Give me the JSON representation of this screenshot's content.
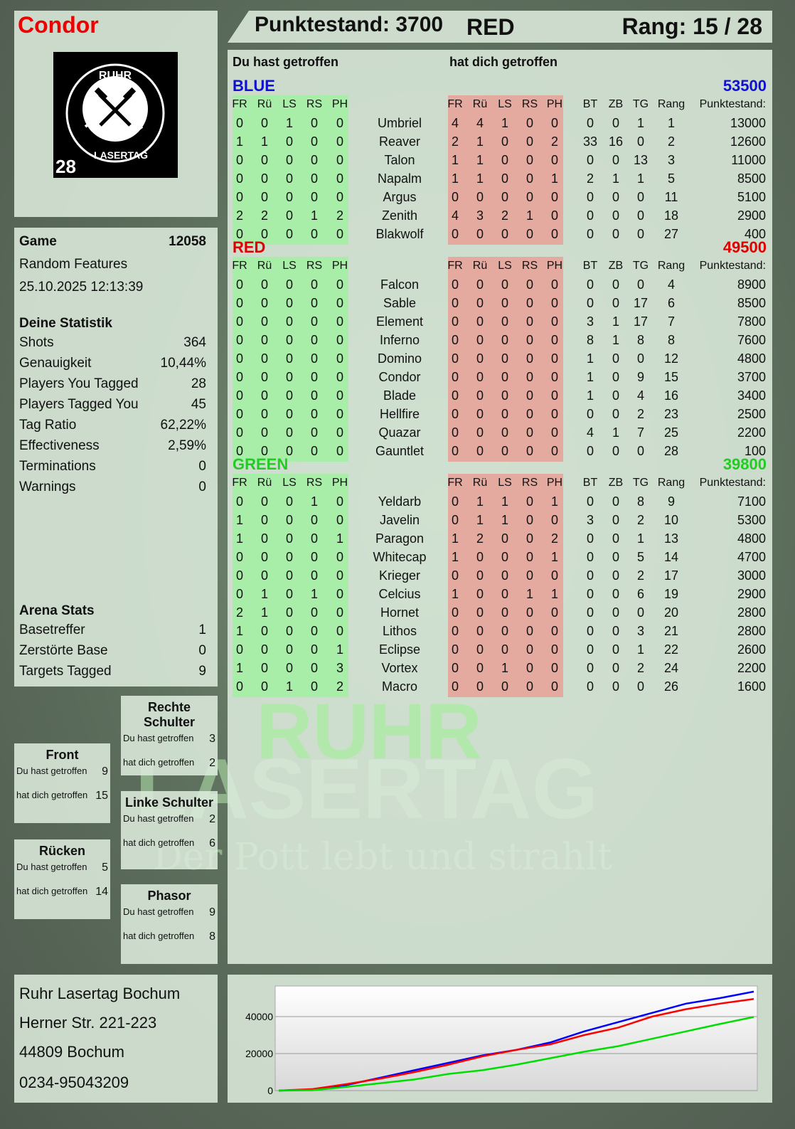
{
  "player": {
    "name": "Condor",
    "logo_text_top": "RUHR",
    "logo_text_bottom": "LASERTAG",
    "logo_number": "28"
  },
  "header": {
    "score": "Punktestand: 3700",
    "team": "RED",
    "rank": "Rang: 15 / 28"
  },
  "main": {
    "you_hit": "Du hast getroffen",
    "hit_you": "hat dich getroffen"
  },
  "columns": {
    "zones": [
      "FR",
      "Rü",
      "LS",
      "RS",
      "PH"
    ],
    "extra": [
      "BT",
      "ZB",
      "TG",
      "Rang"
    ],
    "score": "Punktestand:"
  },
  "colors": {
    "blue": "#0000cc",
    "red": "#dd0000",
    "green": "#22cc22",
    "hit_green": "#a8eea8",
    "hit_red": "#e4aaa0"
  },
  "teams": [
    {
      "name": "BLUE",
      "total": "53500",
      "color": "#1010d0",
      "players": [
        {
          "name": "Umbriel",
          "you": [
            0,
            0,
            1,
            0,
            0
          ],
          "them": [
            4,
            4,
            1,
            0,
            0
          ],
          "bt": 0,
          "zb": 0,
          "tg": 1,
          "rang": 1,
          "score": 13000
        },
        {
          "name": "Reaver",
          "you": [
            1,
            1,
            0,
            0,
            0
          ],
          "them": [
            2,
            1,
            0,
            0,
            2
          ],
          "bt": 33,
          "zb": 16,
          "tg": 0,
          "rang": 2,
          "score": 12600
        },
        {
          "name": "Talon",
          "you": [
            0,
            0,
            0,
            0,
            0
          ],
          "them": [
            1,
            1,
            0,
            0,
            0
          ],
          "bt": 0,
          "zb": 0,
          "tg": 13,
          "rang": 3,
          "score": 11000
        },
        {
          "name": "Napalm",
          "you": [
            0,
            0,
            0,
            0,
            0
          ],
          "them": [
            1,
            1,
            0,
            0,
            1
          ],
          "bt": 2,
          "zb": 1,
          "tg": 1,
          "rang": 5,
          "score": 8500
        },
        {
          "name": "Argus",
          "you": [
            0,
            0,
            0,
            0,
            0
          ],
          "them": [
            0,
            0,
            0,
            0,
            0
          ],
          "bt": 0,
          "zb": 0,
          "tg": 0,
          "rang": 11,
          "score": 5100
        },
        {
          "name": "Zenith",
          "you": [
            2,
            2,
            0,
            1,
            2
          ],
          "them": [
            4,
            3,
            2,
            1,
            0
          ],
          "bt": 0,
          "zb": 0,
          "tg": 0,
          "rang": 18,
          "score": 2900
        },
        {
          "name": "Blakwolf",
          "you": [
            0,
            0,
            0,
            0,
            0
          ],
          "them": [
            0,
            0,
            0,
            0,
            0
          ],
          "bt": 0,
          "zb": 0,
          "tg": 0,
          "rang": 27,
          "score": 400
        }
      ]
    },
    {
      "name": "RED",
      "total": "49500",
      "color": "#e00000",
      "players": [
        {
          "name": "Falcon",
          "you": [
            0,
            0,
            0,
            0,
            0
          ],
          "them": [
            0,
            0,
            0,
            0,
            0
          ],
          "bt": 0,
          "zb": 0,
          "tg": 0,
          "rang": 4,
          "score": 8900
        },
        {
          "name": "Sable",
          "you": [
            0,
            0,
            0,
            0,
            0
          ],
          "them": [
            0,
            0,
            0,
            0,
            0
          ],
          "bt": 0,
          "zb": 0,
          "tg": 17,
          "rang": 6,
          "score": 8500
        },
        {
          "name": "Element",
          "you": [
            0,
            0,
            0,
            0,
            0
          ],
          "them": [
            0,
            0,
            0,
            0,
            0
          ],
          "bt": 3,
          "zb": 1,
          "tg": 17,
          "rang": 7,
          "score": 7800
        },
        {
          "name": "Inferno",
          "you": [
            0,
            0,
            0,
            0,
            0
          ],
          "them": [
            0,
            0,
            0,
            0,
            0
          ],
          "bt": 8,
          "zb": 1,
          "tg": 8,
          "rang": 8,
          "score": 7600
        },
        {
          "name": "Domino",
          "you": [
            0,
            0,
            0,
            0,
            0
          ],
          "them": [
            0,
            0,
            0,
            0,
            0
          ],
          "bt": 1,
          "zb": 0,
          "tg": 0,
          "rang": 12,
          "score": 4800
        },
        {
          "name": "Condor",
          "you": [
            0,
            0,
            0,
            0,
            0
          ],
          "them": [
            0,
            0,
            0,
            0,
            0
          ],
          "bt": 1,
          "zb": 0,
          "tg": 9,
          "rang": 15,
          "score": 3700
        },
        {
          "name": "Blade",
          "you": [
            0,
            0,
            0,
            0,
            0
          ],
          "them": [
            0,
            0,
            0,
            0,
            0
          ],
          "bt": 1,
          "zb": 0,
          "tg": 4,
          "rang": 16,
          "score": 3400
        },
        {
          "name": "Hellfire",
          "you": [
            0,
            0,
            0,
            0,
            0
          ],
          "them": [
            0,
            0,
            0,
            0,
            0
          ],
          "bt": 0,
          "zb": 0,
          "tg": 2,
          "rang": 23,
          "score": 2500
        },
        {
          "name": "Quazar",
          "you": [
            0,
            0,
            0,
            0,
            0
          ],
          "them": [
            0,
            0,
            0,
            0,
            0
          ],
          "bt": 4,
          "zb": 1,
          "tg": 7,
          "rang": 25,
          "score": 2200
        },
        {
          "name": "Gauntlet",
          "you": [
            0,
            0,
            0,
            0,
            0
          ],
          "them": [
            0,
            0,
            0,
            0,
            0
          ],
          "bt": 0,
          "zb": 0,
          "tg": 0,
          "rang": 28,
          "score": 100
        }
      ]
    },
    {
      "name": "GREEN",
      "total": "39800",
      "color": "#22cc22",
      "players": [
        {
          "name": "Yeldarb",
          "you": [
            0,
            0,
            0,
            1,
            0
          ],
          "them": [
            0,
            1,
            1,
            0,
            1
          ],
          "bt": 0,
          "zb": 0,
          "tg": 8,
          "rang": 9,
          "score": 7100
        },
        {
          "name": "Javelin",
          "you": [
            1,
            0,
            0,
            0,
            0
          ],
          "them": [
            0,
            1,
            1,
            0,
            0
          ],
          "bt": 3,
          "zb": 0,
          "tg": 2,
          "rang": 10,
          "score": 5300
        },
        {
          "name": "Paragon",
          "you": [
            1,
            0,
            0,
            0,
            1
          ],
          "them": [
            1,
            2,
            0,
            0,
            2
          ],
          "bt": 0,
          "zb": 0,
          "tg": 1,
          "rang": 13,
          "score": 4800
        },
        {
          "name": "Whitecap",
          "you": [
            0,
            0,
            0,
            0,
            0
          ],
          "them": [
            1,
            0,
            0,
            0,
            1
          ],
          "bt": 0,
          "zb": 0,
          "tg": 5,
          "rang": 14,
          "score": 4700
        },
        {
          "name": "Krieger",
          "you": [
            0,
            0,
            0,
            0,
            0
          ],
          "them": [
            0,
            0,
            0,
            0,
            0
          ],
          "bt": 0,
          "zb": 0,
          "tg": 2,
          "rang": 17,
          "score": 3000
        },
        {
          "name": "Celcius",
          "you": [
            0,
            1,
            0,
            1,
            0
          ],
          "them": [
            1,
            0,
            0,
            1,
            1
          ],
          "bt": 0,
          "zb": 0,
          "tg": 6,
          "rang": 19,
          "score": 2900
        },
        {
          "name": "Hornet",
          "you": [
            2,
            1,
            0,
            0,
            0
          ],
          "them": [
            0,
            0,
            0,
            0,
            0
          ],
          "bt": 0,
          "zb": 0,
          "tg": 0,
          "rang": 20,
          "score": 2800
        },
        {
          "name": "Lithos",
          "you": [
            1,
            0,
            0,
            0,
            0
          ],
          "them": [
            0,
            0,
            0,
            0,
            0
          ],
          "bt": 0,
          "zb": 0,
          "tg": 3,
          "rang": 21,
          "score": 2800
        },
        {
          "name": "Eclipse",
          "you": [
            0,
            0,
            0,
            0,
            1
          ],
          "them": [
            0,
            0,
            0,
            0,
            0
          ],
          "bt": 0,
          "zb": 0,
          "tg": 1,
          "rang": 22,
          "score": 2600
        },
        {
          "name": "Vortex",
          "you": [
            1,
            0,
            0,
            0,
            3
          ],
          "them": [
            0,
            0,
            1,
            0,
            0
          ],
          "bt": 0,
          "zb": 0,
          "tg": 2,
          "rang": 24,
          "score": 2200
        },
        {
          "name": "Macro",
          "you": [
            0,
            0,
            1,
            0,
            2
          ],
          "them": [
            0,
            0,
            0,
            0,
            0
          ],
          "bt": 0,
          "zb": 0,
          "tg": 0,
          "rang": 26,
          "score": 1600
        }
      ]
    }
  ],
  "game": {
    "label": "Game",
    "id": "12058",
    "mode": "Random Features",
    "datetime": "25.10.2025 12:13:39"
  },
  "stats": {
    "title": "Deine Statistik",
    "rows": [
      {
        "label": "Shots",
        "value": "364"
      },
      {
        "label": "Genauigkeit",
        "value": "10,44%"
      },
      {
        "label": "Players You Tagged",
        "value": "28"
      },
      {
        "label": "Players Tagged You",
        "value": "45"
      },
      {
        "label": "Tag Ratio",
        "value": "62,22%"
      },
      {
        "label": "Effectiveness",
        "value": "2,59%"
      },
      {
        "label": "Terminations",
        "value": "0"
      },
      {
        "label": "Warnings",
        "value": "0"
      }
    ]
  },
  "arena": {
    "title": "Arena Stats",
    "rows": [
      {
        "label": "Basetreffer",
        "value": "1"
      },
      {
        "label": "Zerstörte Base",
        "value": "0"
      },
      {
        "label": "Targets Tagged",
        "value": "9"
      }
    ]
  },
  "zones": [
    {
      "title": "Rechte Schulter",
      "you_label": "Du hast getroffen",
      "you": "3",
      "them_label": "hat dich getroffen",
      "them": "2"
    },
    {
      "title": "Front",
      "you_label": "Du hast getroffen",
      "you": "9",
      "them_label": "hat dich getroffen",
      "them": "15"
    },
    {
      "title": "Linke Schulter",
      "you_label": "Du hast getroffen",
      "you": "2",
      "them_label": "hat dich getroffen",
      "them": "6"
    },
    {
      "title": "Rücken",
      "you_label": "Du hast getroffen",
      "you": "5",
      "them_label": "hat dich getroffen",
      "them": "14"
    },
    {
      "title": "Phasor",
      "you_label": "Du hast getroffen",
      "you": "9",
      "them_label": "hat dich getroffen",
      "them": "8"
    }
  ],
  "address": {
    "name": "Ruhr Lasertag Bochum",
    "street": "Herner Str. 221-223",
    "city": "44809 Bochum",
    "phone": "0234-95043209"
  },
  "watermark": {
    "line1": "RUHR",
    "line2": "LASERTAG",
    "slogan": "Der Pott lebt und strahlt"
  },
  "chart_data": {
    "type": "line",
    "ylim": [
      0,
      55000
    ],
    "yticks": [
      "0",
      "20000",
      "40000"
    ],
    "grid": true,
    "legend": "none",
    "series": [
      {
        "color": "#0000ff",
        "values": [
          0,
          500,
          3000,
          7000,
          11000,
          15000,
          19000,
          22000,
          26000,
          32000,
          37000,
          42000,
          47000,
          50000,
          53500
        ]
      },
      {
        "color": "#ff0000",
        "values": [
          0,
          800,
          3500,
          6500,
          10000,
          14000,
          18500,
          22000,
          25000,
          30000,
          34000,
          40000,
          44000,
          47000,
          49500
        ]
      },
      {
        "color": "#00dd00",
        "values": [
          0,
          200,
          2000,
          4000,
          6000,
          9000,
          11000,
          14000,
          17500,
          21000,
          24000,
          28000,
          32000,
          36000,
          39800
        ]
      }
    ]
  }
}
